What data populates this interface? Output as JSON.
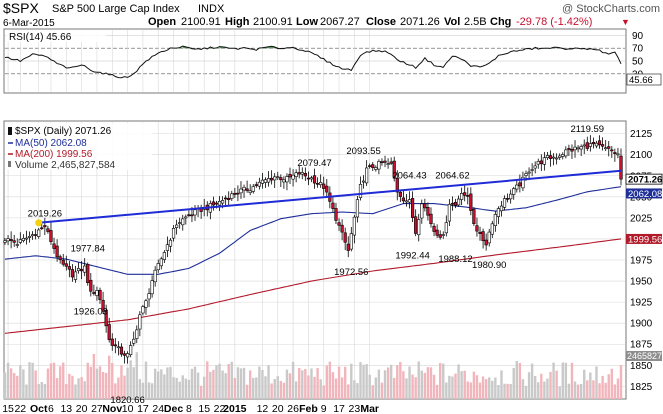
{
  "header": {
    "symbol": "$SPX",
    "name": "S&P 500 Large Cap Index",
    "exchange": "INDX",
    "watermark": "@ StockCharts.com",
    "date": "6-Mar-2015",
    "quote": {
      "open_label": "Open",
      "open": "2100.91",
      "high_label": "High",
      "high": "2100.91",
      "low_label": "Low",
      "low": "2067.27",
      "close_label": "Close",
      "close": "2071.26",
      "vol_label": "Vol",
      "vol": "2.5B",
      "chg_label": "Chg",
      "chg": "-29.78 (-1.42%)",
      "chg_arrow": "▼"
    }
  },
  "rsi_panel": {
    "legend": "RSI(14) 45.66",
    "current_label": "45.66",
    "ylim": [
      0,
      100
    ],
    "y_ticks": [
      "90",
      "70",
      "50",
      "30"
    ],
    "y_tick_values": [
      90,
      70,
      50,
      30
    ],
    "overbought": 70,
    "oversold": 30
  },
  "price_panel": {
    "legend_main": "$SPX (Daily) 2071.26",
    "legend_ma50": "MA(50) 2062.08",
    "legend_ma200": "MA(200) 1999.56",
    "legend_volume": "Volume 2,465,827,584",
    "ylim": [
      1810,
      2140
    ],
    "y_ticks": [
      "2125",
      "2100",
      "2075",
      "2050",
      "2025",
      "2000",
      "1975",
      "1950",
      "1925",
      "1900",
      "1875",
      "1850",
      "1825"
    ],
    "y_tick_values": [
      2125,
      2100,
      2075,
      2050,
      2025,
      2000,
      1975,
      1950,
      1925,
      1900,
      1875,
      1850,
      1825
    ],
    "tags": {
      "close": "2071.26",
      "ma50": "2062.08",
      "ma200": "1999.56",
      "volume": "2465827584"
    },
    "annotations": [
      {
        "label": "2019.26",
        "i": 13,
        "value": 2019.26,
        "pos": "above"
      },
      {
        "label": "1977.84",
        "i": 27,
        "value": 1977.84,
        "pos": "above"
      },
      {
        "label": "1926.03",
        "i": 28,
        "value": 1926.03,
        "pos": "below"
      },
      {
        "label": "1820.66",
        "i": 40,
        "value": 1820.66,
        "pos": "below"
      },
      {
        "label": "2079.47",
        "i": 101,
        "value": 2079.47,
        "pos": "above"
      },
      {
        "label": "1972.56",
        "i": 113,
        "value": 1972.56,
        "pos": "below"
      },
      {
        "label": "2093.55",
        "i": 117,
        "value": 2093.55,
        "pos": "above"
      },
      {
        "label": "2064.43",
        "i": 132,
        "value": 2064.43,
        "pos": "above"
      },
      {
        "label": "1992.44",
        "i": 133,
        "value": 1992.44,
        "pos": "below"
      },
      {
        "label": "2064.62",
        "i": 146,
        "value": 2064.62,
        "pos": "above"
      },
      {
        "label": "1988.12",
        "i": 147,
        "value": 1988.12,
        "pos": "below"
      },
      {
        "label": "1980.90",
        "i": 158,
        "value": 1980.9,
        "pos": "below"
      },
      {
        "label": "2119.59",
        "i": 190,
        "value": 2119.59,
        "pos": "above"
      }
    ]
  },
  "x_axis": {
    "ticks": [
      {
        "label": "15",
        "bold": false
      },
      {
        "label": "22",
        "bold": false
      },
      {
        "label": "Oct",
        "bold": true
      },
      {
        "label": "6",
        "bold": false
      },
      {
        "label": "13",
        "bold": false
      },
      {
        "label": "20",
        "bold": false
      },
      {
        "label": "27",
        "bold": false
      },
      {
        "label": "Nov",
        "bold": true
      },
      {
        "label": "10",
        "bold": false
      },
      {
        "label": "17",
        "bold": false
      },
      {
        "label": "24",
        "bold": false
      },
      {
        "label": "Dec",
        "bold": true
      },
      {
        "label": "8",
        "bold": false
      },
      {
        "label": "15",
        "bold": false
      },
      {
        "label": "22",
        "bold": false
      },
      {
        "label": "2015",
        "bold": true
      },
      {
        "label": "12",
        "bold": false
      },
      {
        "label": "20",
        "bold": false
      },
      {
        "label": "26",
        "bold": false
      },
      {
        "label": "Feb",
        "bold": true
      },
      {
        "label": "9",
        "bold": false
      },
      {
        "label": "17",
        "bold": false
      },
      {
        "label": "23",
        "bold": false
      },
      {
        "label": "Mar",
        "bold": true
      }
    ],
    "tick_index": [
      1,
      5,
      11,
      15,
      20,
      25,
      30,
      35,
      40,
      45,
      50,
      55,
      60,
      65,
      70,
      75,
      84,
      89,
      94,
      99,
      104,
      109,
      114,
      119
    ]
  },
  "chart_data": {
    "type": "candlestick",
    "x_range": [
      "2014-09-15",
      "2015-03-06"
    ],
    "series": [
      {
        "name": "$SPX (Daily)",
        "kind": "candlestick",
        "anchors": [
          [
            0,
            2000
          ],
          [
            4,
            1995
          ],
          [
            9,
            2005
          ],
          [
            13,
            2015
          ],
          [
            18,
            1972
          ],
          [
            22,
            1958
          ],
          [
            26,
            1966
          ],
          [
            28,
            1935
          ],
          [
            30,
            1940
          ],
          [
            32,
            1915
          ],
          [
            34,
            1880
          ],
          [
            38,
            1865
          ],
          [
            40,
            1862
          ],
          [
            42,
            1880
          ],
          [
            44,
            1910
          ],
          [
            46,
            1925
          ],
          [
            48,
            1951
          ],
          [
            52,
            1985
          ],
          [
            56,
            2018
          ],
          [
            60,
            2028
          ],
          [
            64,
            2035
          ],
          [
            68,
            2040
          ],
          [
            72,
            2048
          ],
          [
            76,
            2056
          ],
          [
            80,
            2060
          ],
          [
            84,
            2068
          ],
          [
            88,
            2074
          ],
          [
            92,
            2071
          ],
          [
            96,
            2078
          ],
          [
            100,
            2072
          ],
          [
            104,
            2062
          ],
          [
            108,
            2025
          ],
          [
            110,
            2005
          ],
          [
            112,
            1986
          ],
          [
            114,
            2025
          ],
          [
            116,
            2062
          ],
          [
            118,
            2082
          ],
          [
            120,
            2086
          ],
          [
            123,
            2090
          ],
          [
            126,
            2088
          ],
          [
            128,
            2057
          ],
          [
            130,
            2048
          ],
          [
            132,
            2044
          ],
          [
            134,
            2008
          ],
          [
            136,
            2045
          ],
          [
            138,
            2028
          ],
          [
            140,
            2010
          ],
          [
            143,
            2002
          ],
          [
            145,
            2043
          ],
          [
            147,
            2040
          ],
          [
            149,
            2057
          ],
          [
            151,
            2048
          ],
          [
            153,
            2020
          ],
          [
            155,
            2003
          ],
          [
            157,
            1995
          ],
          [
            159,
            2021
          ],
          [
            161,
            2037
          ],
          [
            163,
            2046
          ],
          [
            165,
            2053
          ],
          [
            167,
            2061
          ],
          [
            169,
            2070
          ],
          [
            171,
            2082
          ],
          [
            174,
            2090
          ],
          [
            177,
            2096
          ],
          [
            180,
            2098
          ],
          [
            183,
            2104
          ],
          [
            186,
            2107
          ],
          [
            189,
            2110
          ],
          [
            192,
            2112
          ],
          [
            195,
            2108
          ],
          [
            198,
            2104
          ],
          [
            200,
            2100
          ],
          [
            201,
            2071
          ]
        ]
      },
      {
        "name": "MA(50)",
        "kind": "line",
        "color": "#1f2f9a",
        "anchors": [
          [
            0,
            1976
          ],
          [
            10,
            1980
          ],
          [
            20,
            1976
          ],
          [
            30,
            1967
          ],
          [
            40,
            1958
          ],
          [
            50,
            1958
          ],
          [
            60,
            1965
          ],
          [
            70,
            1983
          ],
          [
            80,
            2010
          ],
          [
            90,
            2024
          ],
          [
            100,
            2030
          ],
          [
            110,
            2032
          ],
          [
            120,
            2030
          ],
          [
            130,
            2042
          ],
          [
            140,
            2042
          ],
          [
            150,
            2038
          ],
          [
            160,
            2033
          ],
          [
            170,
            2037
          ],
          [
            180,
            2046
          ],
          [
            190,
            2056
          ],
          [
            201,
            2062
          ]
        ]
      },
      {
        "name": "MA(200)",
        "kind": "line",
        "color": "#b21a2a",
        "anchors": [
          [
            0,
            1888
          ],
          [
            20,
            1896
          ],
          [
            40,
            1904
          ],
          [
            60,
            1917
          ],
          [
            80,
            1934
          ],
          [
            100,
            1950
          ],
          [
            120,
            1962
          ],
          [
            140,
            1971
          ],
          [
            160,
            1981
          ],
          [
            180,
            1990
          ],
          [
            201,
            2000
          ]
        ]
      },
      {
        "name": "Trendline",
        "kind": "line",
        "color": "#1e2bd6",
        "points": [
          [
            11,
            2019.26
          ],
          [
            201,
            2081
          ]
        ]
      },
      {
        "name": "Volume",
        "kind": "bar",
        "unit": "shares",
        "approx_range": [
          1800000000.0,
          4500000000.0
        ],
        "last": 2465827584
      },
      {
        "name": "RSI(14)",
        "kind": "line",
        "last": 45.66,
        "anchors": [
          [
            0,
            56
          ],
          [
            5,
            50
          ],
          [
            9,
            60
          ],
          [
            13,
            58
          ],
          [
            17,
            46
          ],
          [
            21,
            38
          ],
          [
            25,
            44
          ],
          [
            29,
            34
          ],
          [
            33,
            30
          ],
          [
            36,
            26
          ],
          [
            40,
            24
          ],
          [
            43,
            35
          ],
          [
            46,
            50
          ],
          [
            50,
            62
          ],
          [
            54,
            70
          ],
          [
            58,
            72
          ],
          [
            62,
            68
          ],
          [
            66,
            70
          ],
          [
            70,
            72
          ],
          [
            74,
            69
          ],
          [
            78,
            70
          ],
          [
            82,
            68
          ],
          [
            86,
            72
          ],
          [
            90,
            70
          ],
          [
            94,
            71
          ],
          [
            98,
            66
          ],
          [
            102,
            58
          ],
          [
            106,
            47
          ],
          [
            110,
            38
          ],
          [
            113,
            36
          ],
          [
            116,
            60
          ],
          [
            119,
            65
          ],
          [
            122,
            66
          ],
          [
            125,
            64
          ],
          [
            128,
            52
          ],
          [
            131,
            46
          ],
          [
            134,
            40
          ],
          [
            137,
            54
          ],
          [
            140,
            44
          ],
          [
            143,
            40
          ],
          [
            146,
            58
          ],
          [
            149,
            53
          ],
          [
            152,
            43
          ],
          [
            155,
            40
          ],
          [
            158,
            46
          ],
          [
            161,
            58
          ],
          [
            164,
            63
          ],
          [
            167,
            66
          ],
          [
            170,
            68
          ],
          [
            173,
            70
          ],
          [
            176,
            69
          ],
          [
            179,
            71
          ],
          [
            182,
            69
          ],
          [
            185,
            70
          ],
          [
            188,
            68
          ],
          [
            191,
            70
          ],
          [
            194,
            66
          ],
          [
            197,
            60
          ],
          [
            199,
            63
          ],
          [
            201,
            46
          ]
        ]
      }
    ],
    "title": "$SPX S&P 500 Large Cap Index INDX",
    "grid": true,
    "legend_position": "top-left"
  },
  "colors": {
    "up": "#ffffff",
    "down": "#c8102e",
    "candle_outline": "#000000",
    "ma50": "#1f2f9a",
    "ma200": "#b21a2a",
    "trend": "#1e2bd6",
    "vol_up": "#c9c9c9",
    "vol_down": "#f2b5bb",
    "annotation_dot": "#f4d20a",
    "rsi_fill": "#4f8f4f",
    "grid": "#d8d8d8",
    "tag_close_bg": "#ffffff",
    "tag_ma50_bg": "#1f2f9a",
    "tag_ma200_bg": "#b21a2a"
  }
}
